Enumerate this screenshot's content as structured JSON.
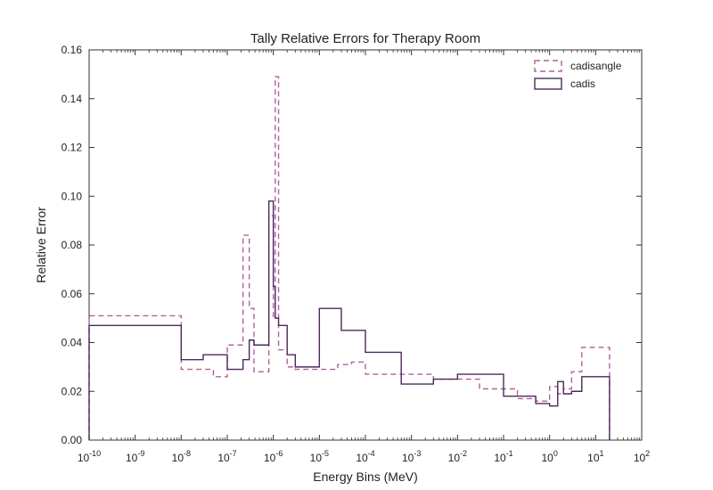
{
  "chart_data": {
    "type": "line",
    "title": "Tally Relative Errors for Therapy Room",
    "xlabel": "Energy Bins (MeV)",
    "ylabel": "Relative Error",
    "x_scale": "log",
    "xlim": [
      1e-10,
      100
    ],
    "ylim": [
      0,
      0.16
    ],
    "x_ticks": [
      {
        "base": "10",
        "exp": "-10",
        "value": 1e-10
      },
      {
        "base": "10",
        "exp": "-9",
        "value": 1e-09
      },
      {
        "base": "10",
        "exp": "-8",
        "value": 1e-08
      },
      {
        "base": "10",
        "exp": "-7",
        "value": 1e-07
      },
      {
        "base": "10",
        "exp": "-6",
        "value": 1e-06
      },
      {
        "base": "10",
        "exp": "-5",
        "value": 1e-05
      },
      {
        "base": "10",
        "exp": "-4",
        "value": 0.0001
      },
      {
        "base": "10",
        "exp": "-3",
        "value": 0.001
      },
      {
        "base": "10",
        "exp": "-2",
        "value": 0.01
      },
      {
        "base": "10",
        "exp": "-1",
        "value": 0.1
      },
      {
        "base": "10",
        "exp": "0",
        "value": 1
      },
      {
        "base": "10",
        "exp": "1",
        "value": 10
      },
      {
        "base": "10",
        "exp": "2",
        "value": 100
      }
    ],
    "y_ticks": [
      "0.00",
      "0.02",
      "0.04",
      "0.06",
      "0.08",
      "0.10",
      "0.12",
      "0.14",
      "0.16"
    ],
    "legend_position": "top-right",
    "grid": false,
    "series": [
      {
        "name": "cadisangle",
        "style": "dashed",
        "color": "#b4609a",
        "edges": [
          1e-10,
          1e-08,
          3e-08,
          5e-08,
          1e-07,
          2.2e-07,
          3e-07,
          3.8e-07,
          5e-07,
          8e-07,
          1e-06,
          1.1e-06,
          1.3e-06,
          2e-06,
          3e-06,
          1e-05,
          2.5e-05,
          5e-05,
          0.0001,
          0.0006,
          0.003,
          0.01,
          0.03,
          0.1,
          0.2,
          0.5,
          1,
          1.5,
          2,
          3,
          5,
          20
        ],
        "values": [
          0.051,
          0.029,
          0.029,
          0.026,
          0.039,
          0.084,
          0.054,
          0.028,
          0.028,
          0.092,
          0.05,
          0.149,
          0.037,
          0.03,
          0.029,
          0.029,
          0.031,
          0.032,
          0.027,
          0.027,
          0.025,
          0.025,
          0.021,
          0.021,
          0.017,
          0.016,
          0.022,
          0.019,
          0.021,
          0.028,
          0.038
        ]
      },
      {
        "name": "cadis",
        "style": "solid",
        "color": "#4b2a5e",
        "edges": [
          1e-10,
          1e-08,
          3e-08,
          1e-07,
          2.2e-07,
          3e-07,
          3.8e-07,
          5e-07,
          8e-07,
          1e-06,
          1.1e-06,
          1.3e-06,
          2e-06,
          3e-06,
          1e-05,
          3e-05,
          0.0001,
          0.0006,
          0.003,
          0.01,
          0.1,
          0.5,
          1,
          1.5,
          2,
          3,
          5,
          20
        ],
        "values": [
          0.047,
          0.033,
          0.035,
          0.029,
          0.033,
          0.041,
          0.039,
          0.039,
          0.098,
          0.063,
          0.05,
          0.047,
          0.035,
          0.03,
          0.054,
          0.045,
          0.036,
          0.023,
          0.025,
          0.027,
          0.018,
          0.015,
          0.014,
          0.024,
          0.019,
          0.02,
          0.026,
          0.0
        ]
      }
    ]
  }
}
